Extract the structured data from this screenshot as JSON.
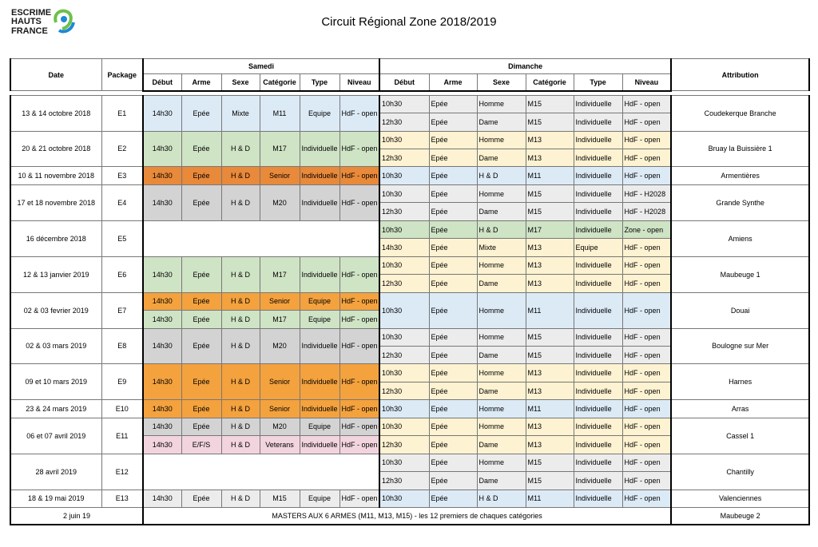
{
  "logo": {
    "line1": "ESCRIME",
    "line2": "HAUTS",
    "line3": "FRANCE"
  },
  "title": "Circuit Régional Zone 2018/2019",
  "colors": {
    "blue": "#dceaf6",
    "green": "#cfe3c5",
    "orange": "#f4a23e",
    "dark_orange": "#e9893a",
    "gray": "#d3d3d3",
    "light_gray": "#ececec",
    "yellow": "#fdf2d1",
    "pink": "#f2d4df"
  },
  "headers": {
    "date": "Date",
    "package": "Package",
    "samedi": "Samedi",
    "dimanche": "Dimanche",
    "attribution": "Attribution",
    "cols": [
      "Début",
      "Arme",
      "Sexe",
      "Catégorie",
      "Type",
      "Niveau"
    ]
  },
  "rows": [
    {
      "date": "13 & 14 octobre 2018",
      "package": "E1",
      "attribution": "Coudekerque Branche",
      "sat": [
        [
          "14h30",
          "Epée",
          "Mixte",
          "M11",
          "Equipe",
          "HdF - open"
        ]
      ],
      "sun": [
        [
          "10h30",
          "Epée",
          "Homme",
          "M15",
          "Individuelle",
          "HdF - open"
        ],
        [
          "12h30",
          "Epée",
          "Dame",
          "M15",
          "Individuelle",
          "HdF - open"
        ]
      ]
    },
    {
      "date": "20 & 21 octobre 2018",
      "package": "E2",
      "attribution": "Bruay la Buissière 1",
      "sat": [
        [
          "14h30",
          "Epée",
          "H & D",
          "M17",
          "Individuelle",
          "HdF - open"
        ]
      ],
      "sun": [
        [
          "10h30",
          "Epée",
          "Homme",
          "M13",
          "Individuelle",
          "HdF - open"
        ],
        [
          "12h30",
          "Epée",
          "Dame",
          "M13",
          "Individuelle",
          "HdF - open"
        ]
      ]
    },
    {
      "date": "10 & 11 novembre 2018",
      "package": "E3",
      "attribution": "Armentières",
      "sat": [
        [
          "14h30",
          "Epée",
          "H & D",
          "Senior",
          "Individuelle",
          "HdF - open"
        ]
      ],
      "sun": [
        [
          "10h30",
          "Epée",
          "H & D",
          "M11",
          "Individuelle",
          "HdF - open"
        ]
      ]
    },
    {
      "date": "17 et 18 novembre 2018",
      "package": "E4",
      "attribution": "Grande Synthe",
      "sat": [
        [
          "14h30",
          "Epée",
          "H & D",
          "M20",
          "Individuelle",
          "HdF - open"
        ]
      ],
      "sun": [
        [
          "10h30",
          "Epée",
          "Homme",
          "M15",
          "Individuelle",
          "HdF - H2028"
        ],
        [
          "12h30",
          "Epée",
          "Dame",
          "M15",
          "Individuelle",
          "HdF - H2028"
        ]
      ]
    },
    {
      "date": "16 décembre 2018",
      "package": "E5",
      "attribution": "Amiens",
      "sat": [],
      "sun": [
        [
          "10h30",
          "Epée",
          "H & D",
          "M17",
          "Individuelle",
          "Zone - open"
        ],
        [
          "14h30",
          "Epée",
          "Mixte",
          "M13",
          "Equipe",
          "HdF - open"
        ]
      ]
    },
    {
      "date": "12 & 13 janvier 2019",
      "package": "E6",
      "attribution": "Maubeuge 1",
      "sat": [
        [
          "14h30",
          "Epée",
          "H & D",
          "M17",
          "Individuelle",
          "HdF - open"
        ]
      ],
      "sun": [
        [
          "10h30",
          "Epée",
          "Homme",
          "M13",
          "Individuelle",
          "HdF - open"
        ],
        [
          "12h30",
          "Epée",
          "Dame",
          "M13",
          "Individuelle",
          "HdF - open"
        ]
      ]
    },
    {
      "date": "02 & 03 fevrier 2019",
      "package": "E7",
      "attribution": "Douai",
      "sat": [
        [
          "14h30",
          "Epée",
          "H & D",
          "Senior",
          "Equipe",
          "HdF - open"
        ],
        [
          "14h30",
          "Epée",
          "H & D",
          "M17",
          "Equipe",
          "HdF - open"
        ]
      ],
      "sun": [
        [
          "10h30",
          "Epée",
          "Homme",
          "M11",
          "Individuelle",
          "HdF - open"
        ]
      ]
    },
    {
      "date": "02 & 03 mars 2019",
      "package": "E8",
      "attribution": "Boulogne sur Mer",
      "sat": [
        [
          "14h30",
          "Epée",
          "H & D",
          "M20",
          "Individuelle",
          "HdF - open"
        ]
      ],
      "sun": [
        [
          "10h30",
          "Epée",
          "Homme",
          "M15",
          "Individuelle",
          "HdF - open"
        ],
        [
          "12h30",
          "Epée",
          "Dame",
          "M15",
          "Individuelle",
          "HdF - open"
        ]
      ]
    },
    {
      "date": "09 et 10 mars 2019",
      "package": "E9",
      "attribution": "Harnes",
      "sat": [
        [
          "14h30",
          "Epée",
          "H & D",
          "Senior",
          "Individuelle",
          "HdF - open"
        ]
      ],
      "sun": [
        [
          "10h30",
          "Epée",
          "Homme",
          "M13",
          "Individuelle",
          "HdF - open"
        ],
        [
          "12h30",
          "Epée",
          "Dame",
          "M13",
          "Individuelle",
          "HdF - open"
        ]
      ]
    },
    {
      "date": "23 & 24 mars 2019",
      "package": "E10",
      "attribution": "Arras",
      "sat": [
        [
          "14h30",
          "Epée",
          "H & D",
          "Senior",
          "Individuelle",
          "HdF - open"
        ]
      ],
      "sun": [
        [
          "10h30",
          "Epée",
          "Homme",
          "M11",
          "Individuelle",
          "HdF - open"
        ]
      ]
    },
    {
      "date": "06 et 07 avril 2019",
      "package": "E11",
      "attribution": "Cassel 1",
      "sat": [
        [
          "14h30",
          "Epée",
          "H & D",
          "M20",
          "Equipe",
          "HdF - open"
        ],
        [
          "14h30",
          "E/F/S",
          "H & D",
          "Veterans",
          "Individuelle",
          "HdF - open"
        ]
      ],
      "sun": [
        [
          "10h30",
          "Epée",
          "Homme",
          "M13",
          "Individuelle",
          "HdF - open"
        ],
        [
          "12h30",
          "Epée",
          "Dame",
          "M13",
          "Individuelle",
          "HdF - open"
        ]
      ]
    },
    {
      "date": "28 avril 2019",
      "package": "E12",
      "attribution": "Chantilly",
      "sat": [],
      "sun": [
        [
          "10h30",
          "Epée",
          "Homme",
          "M15",
          "Individuelle",
          "HdF - open"
        ],
        [
          "12h30",
          "Epée",
          "Dame",
          "M15",
          "Individuelle",
          "HdF - open"
        ]
      ]
    },
    {
      "date": "18 & 19 mai 2019",
      "package": "E13",
      "attribution": "Valenciennes",
      "sat": [
        [
          "14h30",
          "Epée",
          "H & D",
          "M15",
          "Equipe",
          "HdF - open"
        ]
      ],
      "sun": [
        [
          "10h30",
          "Epée",
          "H & D",
          "M11",
          "Individuelle",
          "HdF - open"
        ]
      ]
    }
  ],
  "masters": {
    "date": "2 juin 19",
    "text": "MASTERS AUX 6 ARMES  (M11, M13, M15) - les 12 premiers de chaques catégories",
    "attribution": "Maubeuge 2"
  }
}
